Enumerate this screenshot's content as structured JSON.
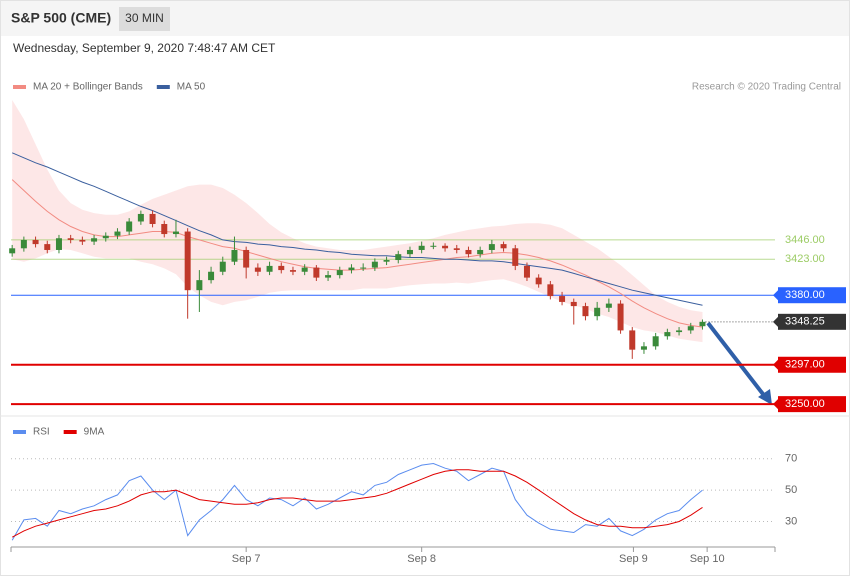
{
  "header": {
    "title": "S&P 500 (CME)",
    "interval": "30 MIN",
    "timestamp": "Wednesday, September 9, 2020 7:48:47 AM CET",
    "credit": "Research © 2020 Trading Central"
  },
  "chart_data": [
    {
      "type": "candlestick",
      "xlim": [
        -0.1,
        65.2
      ],
      "ylim": [
        3243,
        3613
      ],
      "up_color": "#3a8a3a",
      "down_color": "#c0392b",
      "band_color": "#fde3e3",
      "candles": {
        "open": [
          3430,
          3436,
          3446,
          3441,
          3434,
          3448,
          3446,
          3444,
          3448,
          3451,
          3456,
          3468,
          3477,
          3465,
          3453,
          3456,
          3386,
          3398,
          3408,
          3420,
          3434,
          3413,
          3408,
          3415,
          3410,
          3408,
          3413,
          3401,
          3404,
          3410,
          3413,
          3413,
          3420,
          3422,
          3429,
          3434,
          3439,
          3439,
          3436,
          3434,
          3429,
          3434,
          3441,
          3436,
          3415,
          3401,
          3393,
          3379,
          3372,
          3367,
          3355,
          3365,
          3370,
          3338,
          3315,
          3319,
          3331,
          3336,
          3338,
          3343
        ],
        "high": [
          3440,
          3450,
          3450,
          3445,
          3452,
          3452,
          3450,
          3452,
          3455,
          3460,
          3472,
          3481,
          3481,
          3469,
          3470,
          3460,
          3410,
          3414,
          3426,
          3450,
          3438,
          3418,
          3420,
          3419,
          3414,
          3417,
          3416,
          3409,
          3414,
          3417,
          3418,
          3424,
          3426,
          3433,
          3438,
          3444,
          3443,
          3442,
          3440,
          3438,
          3438,
          3446,
          3444,
          3440,
          3419,
          3405,
          3397,
          3384,
          3376,
          3371,
          3372,
          3376,
          3374,
          3342,
          3324,
          3335,
          3340,
          3342,
          3347,
          3351
        ],
        "low": [
          3426,
          3432,
          3437,
          3430,
          3430,
          3442,
          3440,
          3440,
          3444,
          3447,
          3452,
          3464,
          3461,
          3449,
          3449,
          3352,
          3360,
          3394,
          3404,
          3416,
          3400,
          3403,
          3404,
          3406,
          3404,
          3404,
          3397,
          3397,
          3400,
          3406,
          3409,
          3409,
          3416,
          3418,
          3425,
          3430,
          3435,
          3432,
          3430,
          3425,
          3425,
          3430,
          3432,
          3410,
          3397,
          3389,
          3375,
          3368,
          3345,
          3350,
          3350,
          3360,
          3334,
          3304,
          3310,
          3315,
          3327,
          3332,
          3334,
          3339
        ],
        "close": [
          3436,
          3446,
          3441,
          3434,
          3448,
          3446,
          3444,
          3448,
          3451,
          3456,
          3468,
          3477,
          3465,
          3453,
          3456,
          3386,
          3398,
          3408,
          3420,
          3434,
          3413,
          3408,
          3415,
          3410,
          3408,
          3413,
          3401,
          3404,
          3410,
          3413,
          3413,
          3420,
          3422,
          3429,
          3434,
          3439,
          3439,
          3436,
          3434,
          3429,
          3434,
          3441,
          3436,
          3415,
          3401,
          3393,
          3379,
          3372,
          3367,
          3355,
          3365,
          3370,
          3338,
          3315,
          3319,
          3331,
          3336,
          3338,
          3343,
          3348.25
        ]
      },
      "series": [
        {
          "name": "MA 20 + Bollinger Bands",
          "color": "#f28b82",
          "values": [
            3518,
            3505,
            3492,
            3480,
            3470,
            3462,
            3456,
            3452,
            3450,
            3450,
            3452,
            3454,
            3456,
            3456,
            3455,
            3450,
            3446,
            3442,
            3438,
            3436,
            3432,
            3428,
            3424,
            3420,
            3417,
            3414,
            3412,
            3411,
            3410,
            3410,
            3411,
            3412,
            3413,
            3415,
            3417,
            3419,
            3421,
            3423,
            3425,
            3426,
            3428,
            3430,
            3431,
            3430,
            3428,
            3425,
            3421,
            3416,
            3410,
            3404,
            3397,
            3390,
            3382,
            3373,
            3365,
            3358,
            3352,
            3347,
            3344,
            3342
          ],
          "upper": [
            3613,
            3590,
            3560,
            3530,
            3505,
            3490,
            3482,
            3478,
            3476,
            3476,
            3480,
            3488,
            3495,
            3500,
            3505,
            3510,
            3512,
            3512,
            3508,
            3500,
            3490,
            3478,
            3465,
            3455,
            3448,
            3442,
            3438,
            3436,
            3434,
            3434,
            3434,
            3436,
            3438,
            3440,
            3442,
            3445,
            3448,
            3452,
            3455,
            3458,
            3460,
            3462,
            3463,
            3465,
            3466,
            3466,
            3464,
            3460,
            3452,
            3444,
            3436,
            3426,
            3416,
            3404,
            3392,
            3380,
            3372,
            3366,
            3362,
            3360
          ],
          "lower": [
            3423,
            3420,
            3424,
            3430,
            3435,
            3434,
            3430,
            3426,
            3424,
            3424,
            3424,
            3420,
            3417,
            3412,
            3405,
            3390,
            3380,
            3372,
            3368,
            3372,
            3374,
            3378,
            3383,
            3385,
            3386,
            3386,
            3386,
            3386,
            3386,
            3386,
            3388,
            3388,
            3388,
            3390,
            3392,
            3393,
            3394,
            3394,
            3395,
            3394,
            3396,
            3398,
            3399,
            3395,
            3390,
            3384,
            3378,
            3372,
            3368,
            3364,
            3358,
            3354,
            3348,
            3342,
            3338,
            3336,
            3332,
            3328,
            3326,
            3324
          ]
        },
        {
          "name": "MA 50",
          "color": "#3a5f9e",
          "values": [
            3550,
            3544,
            3538,
            3533,
            3527,
            3521,
            3515,
            3510,
            3504,
            3498,
            3492,
            3486,
            3481,
            3475,
            3469,
            3463,
            3457,
            3452,
            3446,
            3444,
            3443,
            3441,
            3440,
            3438,
            3437,
            3435,
            3434,
            3432,
            3431,
            3429,
            3428,
            3427,
            3427,
            3426,
            3425,
            3425,
            3424,
            3423,
            3423,
            3422,
            3421,
            3421,
            3420,
            3418,
            3416,
            3414,
            3412,
            3410,
            3406,
            3402,
            3398,
            3394,
            3390,
            3386,
            3383,
            3380,
            3377,
            3374,
            3371,
            3368
          ]
        }
      ],
      "levels": [
        {
          "value": 3446,
          "label": "3446.00",
          "color": "#9ccc65",
          "style": "text"
        },
        {
          "value": 3423,
          "label": "3423.00",
          "color": "#9ccc65",
          "style": "text"
        },
        {
          "value": 3380,
          "label": "3380.00",
          "color": "#2962ff",
          "style": "box"
        },
        {
          "value": 3348.25,
          "color": "#333333",
          "style": "current"
        },
        {
          "value": 3297,
          "label": "3297.00",
          "color": "#e00000",
          "style": "box"
        },
        {
          "value": 3250,
          "label": "3250.00",
          "color": "#e00000",
          "style": "box"
        }
      ]
    },
    {
      "type": "line",
      "xlim": [
        -0.1,
        65.2
      ],
      "ylim": [
        15,
        82
      ],
      "yticks": [
        30,
        50,
        70
      ],
      "grid": true,
      "xticks": [
        {
          "value": 20,
          "label": "Sep 7"
        },
        {
          "value": 35,
          "label": "Sep 8"
        },
        {
          "value": 53.1,
          "label": "Sep 9"
        },
        {
          "value": 59.4,
          "label": "Sep 10"
        }
      ],
      "series": [
        {
          "name": "RSI",
          "color": "#5b8def",
          "values": [
            18,
            31,
            32,
            27,
            37,
            35,
            38,
            40,
            44,
            47,
            56,
            59,
            50,
            44,
            50,
            21,
            31,
            37,
            44,
            53,
            44,
            40,
            45,
            44,
            40,
            45,
            38,
            41,
            45,
            49,
            47,
            53,
            55,
            60,
            63,
            66,
            67,
            64,
            62,
            56,
            60,
            64,
            62,
            44,
            34,
            29,
            25,
            24,
            23,
            28,
            27,
            32,
            24,
            21,
            25,
            31,
            35,
            37,
            44,
            50
          ]
        },
        {
          "name": "9MA",
          "color": "#e00000",
          "values": [
            20,
            24,
            27,
            29,
            31,
            33,
            35,
            37,
            38,
            40,
            43,
            47,
            49,
            49,
            50,
            47,
            44,
            43,
            42,
            41,
            41,
            42,
            44,
            45,
            45,
            44,
            43,
            43,
            43,
            44,
            45,
            46,
            48,
            51,
            54,
            57,
            60,
            62,
            63,
            63,
            62,
            62,
            62,
            59,
            55,
            50,
            45,
            40,
            35,
            31,
            28,
            27,
            27,
            26,
            26,
            27,
            28,
            30,
            34,
            39
          ]
        }
      ]
    }
  ]
}
